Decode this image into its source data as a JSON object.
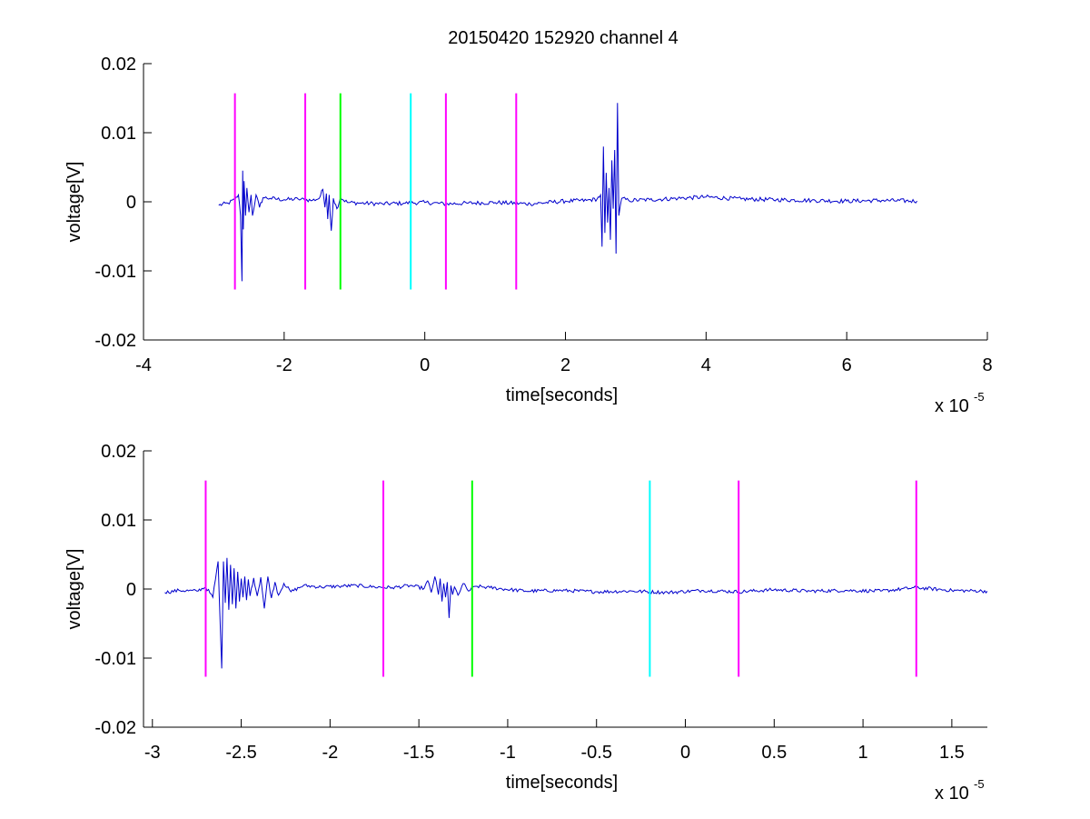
{
  "colors": {
    "background": "#ffffff",
    "axis": "#000000",
    "trace": "#0000cc",
    "magenta": "#ff00ff",
    "green": "#00ff00",
    "cyan": "#00ffff"
  },
  "figure_title": "20150420 152920 channel 4",
  "chart_data": [
    {
      "type": "line",
      "title": "20150420 152920 channel 4",
      "xlabel": "time[seconds]",
      "ylabel": "voltage[V]",
      "x_multiplier": "x 10",
      "x_exponent": "-5",
      "xlim": [
        -4,
        8
      ],
      "ylim": [
        -0.02,
        0.02
      ],
      "x_ticks": [
        -4,
        -2,
        0,
        2,
        4,
        6,
        8
      ],
      "x_tick_labels": [
        "-4",
        "-2",
        "0",
        "2",
        "4",
        "6",
        "8"
      ],
      "y_ticks": [
        -0.02,
        -0.01,
        0,
        0.01,
        0.02
      ],
      "y_tick_labels": [
        "-0.02",
        "-0.01",
        "0",
        "0.01",
        "0.02"
      ],
      "grid": false,
      "markers": [
        {
          "x": -2.7,
          "color": "magenta"
        },
        {
          "x": -1.7,
          "color": "magenta"
        },
        {
          "x": -1.2,
          "color": "green"
        },
        {
          "x": -0.2,
          "color": "cyan"
        },
        {
          "x": 0.3,
          "color": "magenta"
        },
        {
          "x": 1.3,
          "color": "magenta"
        }
      ],
      "marker_y_range": [
        -0.0127,
        0.0157
      ],
      "series": [
        {
          "x": [
            -2.93,
            -2.8,
            -2.7,
            -2.65,
            -2.62,
            -2.6,
            -2.59,
            -2.58,
            -2.57,
            -2.55,
            -2.53,
            -2.5,
            -2.47,
            -2.45,
            -2.4,
            -2.35,
            -2.3,
            -2.2,
            -2.0,
            -1.8,
            -1.6,
            -1.5,
            -1.45,
            -1.42,
            -1.4,
            -1.38,
            -1.36,
            -1.33,
            -1.3,
            -1.25,
            -1.2,
            -1.1,
            -0.9,
            -0.6,
            -0.3,
            0,
            0.3,
            0.6,
            1.0,
            1.5,
            2.0,
            2.3,
            2.45,
            2.5,
            2.52,
            2.54,
            2.56,
            2.58,
            2.6,
            2.62,
            2.64,
            2.66,
            2.68,
            2.7,
            2.72,
            2.74,
            2.76,
            2.8,
            2.9,
            3.2,
            3.6,
            4.0,
            4.5,
            5.0,
            5.5,
            6.0,
            6.5,
            7.0
          ],
          "values": [
            -0.0005,
            -0.0002,
            0.0003,
            0.001,
            -0.002,
            -0.0115,
            0.0045,
            -0.004,
            0.003,
            -0.002,
            0.002,
            -0.0015,
            0.001,
            -0.002,
            0.001,
            -0.0008,
            0.0006,
            0.0005,
            0.0003,
            0.0004,
            0.0002,
            0.0005,
            0.0018,
            -0.0008,
            0.0012,
            -0.0025,
            0.001,
            -0.0042,
            0.0005,
            -0.001,
            0.0006,
            -0.0001,
            -0.0002,
            -0.0003,
            -0.0002,
            -0.0001,
            -0.0003,
            -0.0002,
            -0.0001,
            -0.0003,
            0.0001,
            0.0002,
            0.0004,
            0.001,
            -0.0065,
            0.008,
            -0.0045,
            0.0042,
            -0.003,
            0.002,
            -0.0055,
            0.006,
            -0.001,
            0.0075,
            -0.0075,
            0.0143,
            -0.002,
            0.0005,
            0.0002,
            0.0003,
            0.0005,
            0.0007,
            0.0004,
            0.0003,
            0.0002,
            0.0001,
            0.0002,
            0.0001
          ],
          "noise": 0.0003
        }
      ]
    },
    {
      "type": "line",
      "title": "",
      "xlabel": "time[seconds]",
      "ylabel": "voltage[V]",
      "x_multiplier": "x 10",
      "x_exponent": "-5",
      "xlim": [
        -3.05,
        1.7
      ],
      "ylim": [
        -0.02,
        0.02
      ],
      "x_ticks": [
        -3,
        -2.5,
        -2,
        -1.5,
        -1,
        -0.5,
        0,
        0.5,
        1,
        1.5
      ],
      "x_tick_labels": [
        "-3",
        "-2.5",
        "-2",
        "-1.5",
        "-1",
        "-0.5",
        "0",
        "0.5",
        "1",
        "1.5"
      ],
      "y_ticks": [
        -0.02,
        -0.01,
        0,
        0.01,
        0.02
      ],
      "y_tick_labels": [
        "-0.02",
        "-0.01",
        "0",
        "0.01",
        "0.02"
      ],
      "grid": false,
      "markers": [
        {
          "x": -2.7,
          "color": "magenta"
        },
        {
          "x": -1.7,
          "color": "magenta"
        },
        {
          "x": -1.2,
          "color": "green"
        },
        {
          "x": -0.2,
          "color": "cyan"
        },
        {
          "x": 0.3,
          "color": "magenta"
        },
        {
          "x": 1.3,
          "color": "magenta"
        }
      ],
      "marker_y_range": [
        -0.0127,
        0.0157
      ],
      "series": [
        {
          "x": [
            -2.93,
            -2.85,
            -2.75,
            -2.7,
            -2.66,
            -2.63,
            -2.61,
            -2.6,
            -2.59,
            -2.58,
            -2.57,
            -2.56,
            -2.55,
            -2.54,
            -2.53,
            -2.52,
            -2.51,
            -2.5,
            -2.49,
            -2.48,
            -2.47,
            -2.46,
            -2.45,
            -2.43,
            -2.41,
            -2.39,
            -2.37,
            -2.35,
            -2.33,
            -2.31,
            -2.29,
            -2.26,
            -2.22,
            -2.15,
            -2.05,
            -1.95,
            -1.85,
            -1.75,
            -1.65,
            -1.55,
            -1.47,
            -1.45,
            -1.43,
            -1.41,
            -1.39,
            -1.38,
            -1.37,
            -1.36,
            -1.35,
            -1.34,
            -1.33,
            -1.32,
            -1.31,
            -1.3,
            -1.28,
            -1.25,
            -1.22,
            -1.18,
            -1.1,
            -0.9,
            -0.7,
            -0.5,
            -0.3,
            -0.1,
            0.1,
            0.3,
            0.5,
            0.7,
            0.9,
            1.1,
            1.3,
            1.5,
            1.7
          ],
          "values": [
            -0.0005,
            -0.0002,
            -0.0003,
            0.0003,
            -0.0012,
            0.004,
            -0.0115,
            0.004,
            -0.002,
            0.0045,
            -0.003,
            0.0035,
            -0.0022,
            0.003,
            -0.0028,
            0.0025,
            -0.0018,
            0.0015,
            -0.0012,
            0.0018,
            -0.0016,
            0.0014,
            -0.001,
            0.0016,
            -0.001,
            0.0017,
            -0.0028,
            0.0018,
            -0.0013,
            0.001,
            -0.0009,
            0.0008,
            -0.0004,
            0.0005,
            0.0003,
            0.0004,
            0.0005,
            0.0003,
            0.0002,
            0.0005,
            0.0001,
            0.0012,
            -0.0005,
            0.0018,
            -0.0008,
            0.0015,
            -0.0018,
            0.0008,
            -0.0012,
            0.001,
            -0.0042,
            0.0005,
            -0.0008,
            0.0003,
            -0.0009,
            0.0008,
            -0.0003,
            0.0004,
            0.0002,
            -0.0003,
            -0.0002,
            -0.0004,
            -0.0003,
            -0.0005,
            -0.0002,
            -0.0004,
            -0.0001,
            -0.0003,
            -0.0002,
            -0.0003,
            0.0002,
            -0.0002,
            -0.0003
          ],
          "noise": 0.00025
        }
      ]
    }
  ]
}
